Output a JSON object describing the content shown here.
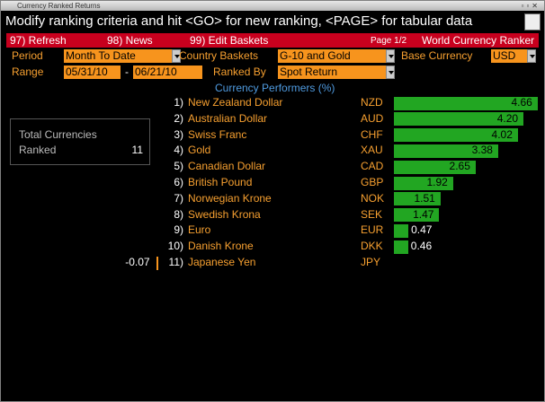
{
  "window_title": "Currency Ranked Returns",
  "message": "Modify ranking criteria and hit <GO> for new ranking, <PAGE> for tabular data",
  "menu": {
    "items": [
      "97) Refresh",
      "98) News",
      "99) Edit Baskets"
    ],
    "page": "Page 1/2",
    "title": "World Currency Ranker"
  },
  "form": {
    "period_label": "Period",
    "period": "Month To Date",
    "baskets_label": "Country Baskets",
    "baskets": "G-10 and Gold",
    "base_label": "Base Currency",
    "base": "USD",
    "range_label": "Range",
    "start": "05/31/10",
    "dash": "-",
    "end": "06/21/10",
    "ranked_label": "Ranked By",
    "ranked": "Spot Return"
  },
  "summary": {
    "label_1": "Total Currencies",
    "label_2": "Ranked",
    "count": 11
  },
  "ranking": {
    "title": "Currency Performers (%)",
    "rows": [
      {
        "rank": "1)",
        "name": "New Zealand Dollar",
        "code": "NZD",
        "value": 4.66
      },
      {
        "rank": "2)",
        "name": "Australian Dollar",
        "code": "AUD",
        "value": 4.2,
        "value_label": "4.20"
      },
      {
        "rank": "3)",
        "name": "Swiss Franc",
        "code": "CHF",
        "value": 4.02
      },
      {
        "rank": "4)",
        "name": "Gold",
        "code": "XAU",
        "value": 3.38
      },
      {
        "rank": "5)",
        "name": "Canadian Dollar",
        "code": "CAD",
        "value": 2.65
      },
      {
        "rank": "6)",
        "name": "British Pound",
        "code": "GBP",
        "value": 1.92
      },
      {
        "rank": "7)",
        "name": "Norwegian Krone",
        "code": "NOK",
        "value": 1.51
      },
      {
        "rank": "8)",
        "name": "Swedish Krona",
        "code": "SEK",
        "value": 1.47
      },
      {
        "rank": "9)",
        "name": "Euro",
        "code": "EUR",
        "value": 0.47
      },
      {
        "rank": "10)",
        "name": "Danish Krone",
        "code": "DKK",
        "value": 0.46
      },
      {
        "rank": "11)",
        "name": "Japanese Yen",
        "code": "JPY",
        "value": -0.07
      }
    ]
  }
}
